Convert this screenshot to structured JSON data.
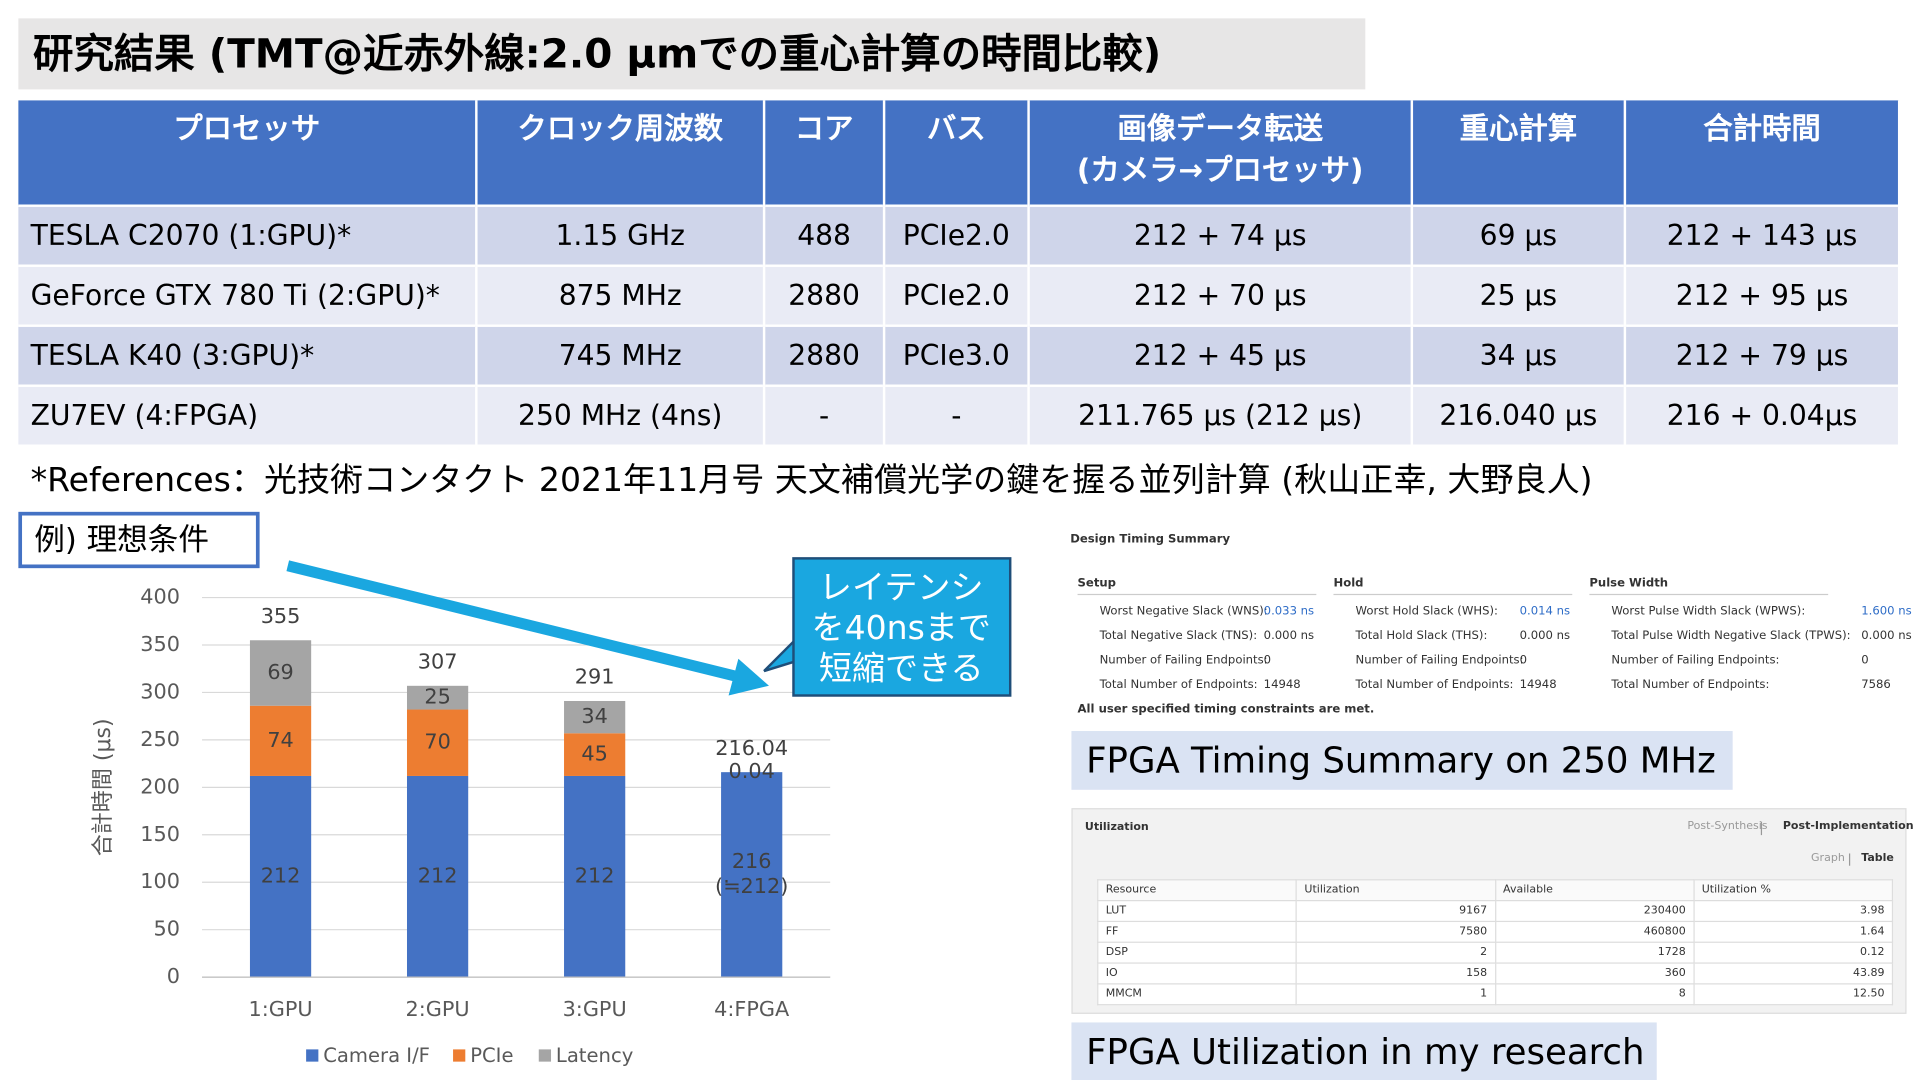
{
  "title": "研究結果 (TMT@近赤外線:2.0 μmでの重心計算の時間比較)",
  "table": {
    "headers": [
      "プロセッサ",
      "クロック周波数",
      "コア",
      "バス",
      "画像データ転送\n(カメラ→プロセッサ)",
      "重心計算",
      "合計時間"
    ],
    "rows": [
      [
        "TESLA C2070 (1:GPU)*",
        "1.15 GHz",
        "488",
        "PCIe2.0",
        "212 + 74 μs",
        "69 μs",
        "212 + 143 μs"
      ],
      [
        "GeForce GTX 780 Ti (2:GPU)*",
        "875 MHz",
        "2880",
        "PCIe2.0",
        "212 + 70 μs",
        "25 μs",
        "212 + 95 μs"
      ],
      [
        "TESLA K40 (3:GPU)*",
        "745 MHz",
        "2880",
        "PCIe3.0",
        "212 + 45 μs",
        "34 μs",
        "212 + 79 μs"
      ],
      [
        "ZU7EV (4:FPGA)",
        "250 MHz (4ns)",
        "-",
        "-",
        "211.765 μs (212 μs)",
        "216.040 μs",
        "216 + 0.04μs"
      ]
    ]
  },
  "references": "*References：光技術コンタクト 2021年11月号 天文補償光学の鍵を握る並列計算 (秋山正幸, 大野良人)",
  "example_label": "例) 理想条件",
  "callout": [
    "レイテンシ",
    "を40nsまで",
    "短縮できる"
  ],
  "chart_data": {
    "type": "stacked_bar",
    "y_label": "合計時間 (μs)",
    "categories": [
      "1:GPU",
      "2:GPU",
      "3:GPU",
      "4:FPGA"
    ],
    "series": [
      {
        "name": "Camera I/F",
        "color": "#4472c4",
        "values": [
          212,
          212,
          212,
          216
        ],
        "value_labels": [
          "212",
          "212",
          "212",
          "216\n(≒212)"
        ]
      },
      {
        "name": "PCIe",
        "color": "#ed7d31",
        "values": [
          74,
          70,
          45,
          null
        ]
      },
      {
        "name": "Latency",
        "color": "#a5a5a5",
        "values": [
          69,
          25,
          34,
          0.04
        ]
      }
    ],
    "totals": [
      355,
      307,
      291,
      216.04
    ],
    "ylim": [
      0,
      400
    ],
    "yticks": [
      0,
      50,
      100,
      150,
      200,
      250,
      300,
      350,
      400
    ],
    "grid": true,
    "legend": "bottom"
  },
  "timing_summary": {
    "title": "Design Timing Summary",
    "groups": [
      {
        "heading": "Setup",
        "rows": [
          [
            "Worst Negative Slack (WNS):",
            "0.033 ns"
          ],
          [
            "Total Negative Slack (TNS):",
            "0.000 ns"
          ],
          [
            "Number of Failing Endpoints:",
            "0"
          ],
          [
            "Total Number of Endpoints:",
            "14948"
          ]
        ]
      },
      {
        "heading": "Hold",
        "rows": [
          [
            "Worst Hold Slack (WHS):",
            "0.014 ns"
          ],
          [
            "Total Hold Slack (THS):",
            "0.000 ns"
          ],
          [
            "Number of Failing Endpoints:",
            "0"
          ],
          [
            "Total Number of Endpoints:",
            "14948"
          ]
        ]
      },
      {
        "heading": "Pulse Width",
        "rows": [
          [
            "Worst Pulse Width Slack (WPWS):",
            "1.600 ns"
          ],
          [
            "Total Pulse Width Negative Slack (TPWS):",
            "0.000 ns"
          ],
          [
            "Number of Failing Endpoints:",
            "0"
          ],
          [
            "Total Number of Endpoints:",
            "7586"
          ]
        ]
      }
    ],
    "footer": "All user specified timing constraints are met.",
    "caption": "FPGA Timing Summary on 250 MHz"
  },
  "utilization": {
    "title": "Utilization",
    "tabs": [
      "Post-Synthesis",
      "Post-Implementation"
    ],
    "views": [
      "Graph",
      "Table"
    ],
    "columns": [
      "Resource",
      "Utilization",
      "Available",
      "Utilization %"
    ],
    "rows": [
      [
        "LUT",
        "9167",
        "230400",
        "3.98"
      ],
      [
        "FF",
        "7580",
        "460800",
        "1.64"
      ],
      [
        "DSP",
        "2",
        "1728",
        "0.12"
      ],
      [
        "IO",
        "158",
        "360",
        "43.89"
      ],
      [
        "MMCM",
        "1",
        "8",
        "12.50"
      ]
    ],
    "caption": "FPGA Utilization in my research"
  }
}
